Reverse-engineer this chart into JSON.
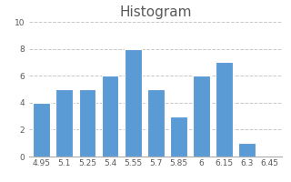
{
  "title": "Histogram",
  "categories": [
    "4.95",
    "5.1",
    "5.25",
    "5.4",
    "5.55",
    "5.7",
    "5.85",
    "6",
    "6.15",
    "6.3",
    "6.45"
  ],
  "values": [
    4,
    5,
    5,
    6,
    8,
    5,
    3,
    6,
    7,
    1,
    0
  ],
  "bar_color": "#5B9BD5",
  "bar_edge_color": "#ffffff",
  "background_color": "#ffffff",
  "ylim": [
    0,
    10
  ],
  "yticks": [
    0,
    2,
    4,
    6,
    8,
    10
  ],
  "grid_color": "#c8c8c8",
  "grid_linestyle": "--",
  "title_fontsize": 11,
  "tick_fontsize": 6.5,
  "bar_width": 0.75,
  "title_color": "#595959"
}
